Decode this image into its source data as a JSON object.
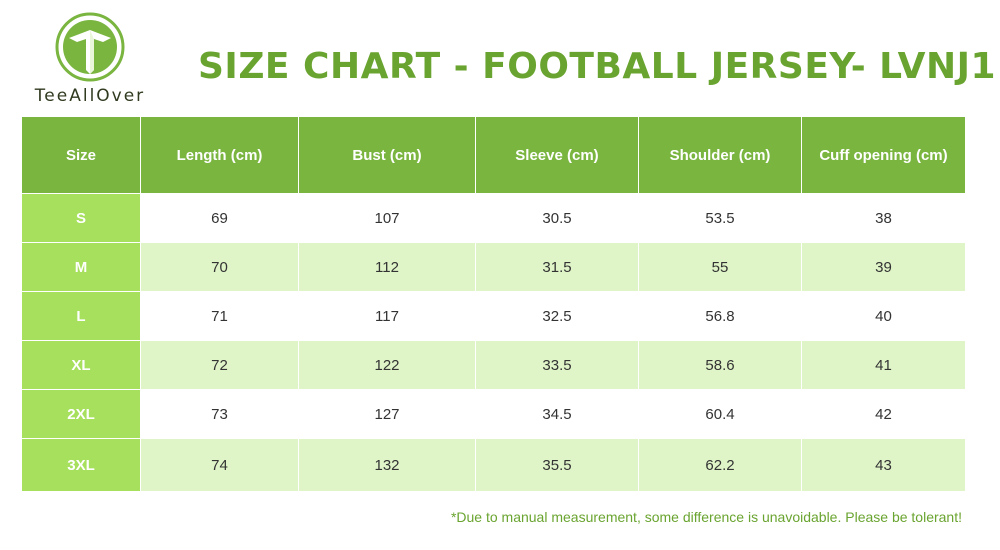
{
  "logo": {
    "brand": "TeeAllOver",
    "accent_color": "#7ab540",
    "icon": "tee-arrow-logo-icon"
  },
  "title": "SIZE CHART - FOOTBALL JERSEY- LVNJ1",
  "table": {
    "headers": [
      "Size",
      "Length (cm)",
      "Bust (cm)",
      "Sleeve (cm)",
      "Shoulder (cm)",
      "Cuff opening (cm)"
    ],
    "rows": [
      [
        "S",
        "69",
        "107",
        "30.5",
        "53.5",
        "38"
      ],
      [
        "M",
        "70",
        "112",
        "31.5",
        "55",
        "39"
      ],
      [
        "L",
        "71",
        "117",
        "32.5",
        "56.8",
        "40"
      ],
      [
        "XL",
        "72",
        "122",
        "33.5",
        "58.6",
        "41"
      ],
      [
        "2XL",
        "73",
        "127",
        "34.5",
        "60.4",
        "42"
      ],
      [
        "3XL",
        "74",
        "132",
        "35.5",
        "62.2",
        "43"
      ]
    ]
  },
  "note": "*Due to manual measurement, some difference is unavoidable. Please be tolerant!",
  "colors": {
    "header_bg": "#7ab540",
    "size_col_bg": "#a6e05c",
    "alt_row_bg": "#dff5c8",
    "title_color": "#6aa430"
  }
}
